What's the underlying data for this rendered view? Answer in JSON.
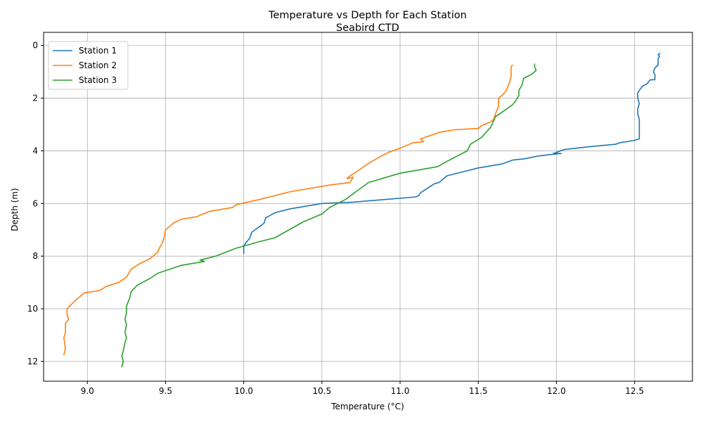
{
  "chart_data": {
    "type": "line",
    "title": "Temperature vs Depth for Each Station",
    "subtitle": "Seabird CTD",
    "xlabel": "Temperature (°C)",
    "ylabel": "Depth (m)",
    "xlim": [
      8.72,
      12.87
    ],
    "ylim": [
      12.75,
      -0.5
    ],
    "y_inverted": true,
    "grid": true,
    "legend": "upper-left",
    "xticks": [
      9.0,
      9.5,
      10.0,
      10.5,
      11.0,
      11.5,
      12.0,
      12.5
    ],
    "xtick_labels": [
      "9.0",
      "9.5",
      "10.0",
      "10.5",
      "11.0",
      "11.5",
      "12.0",
      "12.5"
    ],
    "yticks": [
      0,
      2,
      4,
      6,
      8,
      10,
      12
    ],
    "ytick_labels": [
      "0",
      "2",
      "4",
      "6",
      "8",
      "10",
      "12"
    ],
    "series": [
      {
        "name": "Station 1",
        "color": "#1f77b4",
        "points": [
          [
            12.66,
            0.3
          ],
          [
            12.65,
            0.35
          ],
          [
            12.66,
            0.4
          ],
          [
            12.65,
            0.5
          ],
          [
            12.65,
            0.6
          ],
          [
            12.65,
            0.75
          ],
          [
            12.63,
            0.85
          ],
          [
            12.62,
            1.0
          ],
          [
            12.63,
            1.1
          ],
          [
            12.63,
            1.3
          ],
          [
            12.6,
            1.3
          ],
          [
            12.58,
            1.45
          ],
          [
            12.55,
            1.55
          ],
          [
            12.53,
            1.7
          ],
          [
            12.52,
            1.8
          ],
          [
            12.52,
            2.0
          ],
          [
            12.53,
            2.2
          ],
          [
            12.52,
            2.4
          ],
          [
            12.52,
            2.6
          ],
          [
            12.53,
            2.8
          ],
          [
            12.53,
            3.0
          ],
          [
            12.53,
            3.2
          ],
          [
            12.53,
            3.4
          ],
          [
            12.53,
            3.55
          ],
          [
            12.5,
            3.6
          ],
          [
            12.4,
            3.7
          ],
          [
            12.38,
            3.75
          ],
          [
            12.2,
            3.85
          ],
          [
            12.05,
            3.95
          ],
          [
            11.98,
            4.1
          ],
          [
            12.03,
            4.1
          ],
          [
            11.95,
            4.15
          ],
          [
            11.88,
            4.2
          ],
          [
            11.8,
            4.3
          ],
          [
            11.72,
            4.35
          ],
          [
            11.65,
            4.5
          ],
          [
            11.5,
            4.65
          ],
          [
            11.4,
            4.8
          ],
          [
            11.3,
            4.95
          ],
          [
            11.25,
            5.2
          ],
          [
            11.22,
            5.25
          ],
          [
            11.18,
            5.4
          ],
          [
            11.13,
            5.6
          ],
          [
            11.12,
            5.7
          ],
          [
            11.1,
            5.75
          ],
          [
            10.9,
            5.85
          ],
          [
            10.7,
            5.95
          ],
          [
            10.5,
            6.0
          ],
          [
            10.3,
            6.2
          ],
          [
            10.2,
            6.35
          ],
          [
            10.14,
            6.55
          ],
          [
            10.13,
            6.75
          ],
          [
            10.05,
            7.1
          ],
          [
            10.04,
            7.3
          ],
          [
            10.0,
            7.6
          ],
          [
            10.0,
            7.9
          ]
        ]
      },
      {
        "name": "Station 2",
        "color": "#ff7f0e",
        "points": [
          [
            11.72,
            0.75
          ],
          [
            11.71,
            0.8
          ],
          [
            11.71,
            1.0
          ],
          [
            11.71,
            1.2
          ],
          [
            11.7,
            1.4
          ],
          [
            11.68,
            1.7
          ],
          [
            11.66,
            1.85
          ],
          [
            11.63,
            2.0
          ],
          [
            11.63,
            2.3
          ],
          [
            11.61,
            2.6
          ],
          [
            11.6,
            2.8
          ],
          [
            11.58,
            2.9
          ],
          [
            11.52,
            3.05
          ],
          [
            11.5,
            3.15
          ],
          [
            11.35,
            3.2
          ],
          [
            11.25,
            3.3
          ],
          [
            11.13,
            3.55
          ],
          [
            11.15,
            3.65
          ],
          [
            11.08,
            3.7
          ],
          [
            11.0,
            3.9
          ],
          [
            10.93,
            4.05
          ],
          [
            10.88,
            4.2
          ],
          [
            10.82,
            4.4
          ],
          [
            10.78,
            4.55
          ],
          [
            10.72,
            4.8
          ],
          [
            10.68,
            4.95
          ],
          [
            10.66,
            5.05
          ],
          [
            10.7,
            5.0
          ],
          [
            10.68,
            5.2
          ],
          [
            10.55,
            5.3
          ],
          [
            10.3,
            5.55
          ],
          [
            10.1,
            5.85
          ],
          [
            9.95,
            6.05
          ],
          [
            9.93,
            6.15
          ],
          [
            9.88,
            6.2
          ],
          [
            9.78,
            6.3
          ],
          [
            9.7,
            6.5
          ],
          [
            9.6,
            6.6
          ],
          [
            9.55,
            6.75
          ],
          [
            9.5,
            7.0
          ],
          [
            9.49,
            7.3
          ],
          [
            9.48,
            7.5
          ],
          [
            9.46,
            7.7
          ],
          [
            9.45,
            7.85
          ],
          [
            9.4,
            8.1
          ],
          [
            9.33,
            8.3
          ],
          [
            9.28,
            8.5
          ],
          [
            9.25,
            8.8
          ],
          [
            9.2,
            9.0
          ],
          [
            9.12,
            9.15
          ],
          [
            9.08,
            9.3
          ],
          [
            8.98,
            9.4
          ],
          [
            8.92,
            9.7
          ],
          [
            8.87,
            10.0
          ],
          [
            8.87,
            10.2
          ],
          [
            8.88,
            10.4
          ],
          [
            8.86,
            10.55
          ],
          [
            8.86,
            10.9
          ],
          [
            8.85,
            11.1
          ],
          [
            8.86,
            11.5
          ],
          [
            8.85,
            11.75
          ]
        ]
      },
      {
        "name": "Station 3",
        "color": "#2ca02c",
        "points": [
          [
            11.86,
            0.7
          ],
          [
            11.86,
            0.8
          ],
          [
            11.87,
            0.95
          ],
          [
            11.84,
            1.1
          ],
          [
            11.79,
            1.25
          ],
          [
            11.78,
            1.5
          ],
          [
            11.76,
            1.7
          ],
          [
            11.76,
            1.9
          ],
          [
            11.74,
            2.1
          ],
          [
            11.72,
            2.25
          ],
          [
            11.66,
            2.5
          ],
          [
            11.61,
            2.7
          ],
          [
            11.58,
            3.1
          ],
          [
            11.52,
            3.5
          ],
          [
            11.45,
            3.75
          ],
          [
            11.43,
            4.0
          ],
          [
            11.3,
            4.4
          ],
          [
            11.24,
            4.6
          ],
          [
            11.0,
            4.85
          ],
          [
            10.8,
            5.2
          ],
          [
            10.73,
            5.5
          ],
          [
            10.65,
            5.85
          ],
          [
            10.55,
            6.15
          ],
          [
            10.5,
            6.4
          ],
          [
            10.38,
            6.7
          ],
          [
            10.2,
            7.3
          ],
          [
            10.1,
            7.45
          ],
          [
            9.95,
            7.7
          ],
          [
            9.82,
            8.0
          ],
          [
            9.72,
            8.15
          ],
          [
            9.75,
            8.2
          ],
          [
            9.6,
            8.35
          ],
          [
            9.45,
            8.65
          ],
          [
            9.4,
            8.85
          ],
          [
            9.32,
            9.1
          ],
          [
            9.28,
            9.35
          ],
          [
            9.27,
            9.6
          ],
          [
            9.25,
            9.9
          ],
          [
            9.25,
            10.15
          ],
          [
            9.24,
            10.4
          ],
          [
            9.25,
            10.6
          ],
          [
            9.24,
            10.9
          ],
          [
            9.25,
            11.1
          ],
          [
            9.24,
            11.3
          ],
          [
            9.23,
            11.6
          ],
          [
            9.22,
            11.8
          ],
          [
            9.23,
            12.0
          ],
          [
            9.22,
            12.2
          ]
        ]
      }
    ]
  }
}
